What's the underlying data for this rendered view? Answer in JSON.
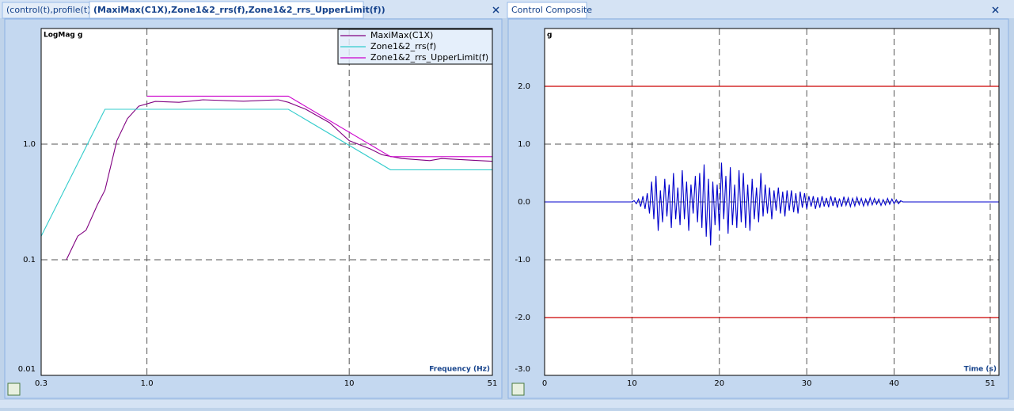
{
  "tabs_left": [
    {
      "label": "(control(t),profile(t))"
    },
    {
      "label": "(MaxiMax(C1X),Zone1&2_rrs(f),Zone1&2_rrs_UpperLimit(f))",
      "active": true
    }
  ],
  "tabs_right": [
    {
      "label": "Control Composite",
      "active": false
    }
  ],
  "chart_data": [
    {
      "type": "line",
      "y_label": "LogMag g",
      "x_label": "Frequency (Hz)",
      "xscale": "log",
      "yscale": "log",
      "xlim": [
        0.3,
        51
      ],
      "ylim": [
        0.01,
        10
      ],
      "xticks": [
        0.3,
        {
          "value": 1,
          "label": "1.0"
        },
        10,
        51
      ],
      "yticks": [
        0.01,
        0.1,
        {
          "value": 1,
          "label": "1.0"
        }
      ],
      "grid": true,
      "legend": "upper right",
      "series": [
        {
          "name": "MaxiMax(C1X)",
          "color": "#800080",
          "x": [
            0.4,
            0.455,
            0.5,
            0.57,
            0.62,
            0.71,
            0.8,
            0.91,
            1.1,
            1.44,
            1.89,
            3.0,
            4.46,
            5.0,
            6.1,
            8.0,
            10,
            12.7,
            14.5,
            18.2,
            25,
            28.6,
            51
          ],
          "values": [
            0.1,
            0.16,
            0.18,
            0.3,
            0.4,
            1.07,
            1.66,
            2.13,
            2.34,
            2.3,
            2.42,
            2.35,
            2.42,
            2.3,
            2.0,
            1.53,
            1.07,
            0.91,
            0.81,
            0.75,
            0.72,
            0.75,
            0.71
          ]
        },
        {
          "name": "Zone1&2_rrs(f)",
          "color": "#33cccc",
          "x": [
            0.3,
            0.62,
            5,
            16,
            51
          ],
          "values": [
            0.16,
            2,
            2,
            0.6,
            0.6
          ]
        },
        {
          "name": "Zone1&2_rrs_UpperLimit(f)",
          "color": "#cc00cc",
          "x": [
            1,
            5,
            16,
            51
          ],
          "values": [
            2.6,
            2.6,
            0.78,
            0.78
          ]
        }
      ]
    },
    {
      "type": "line",
      "y_label": "g",
      "x_label": "Time (s)",
      "xscale": "linear",
      "yscale": "linear",
      "xlim": [
        0,
        52
      ],
      "ylim": [
        -3,
        3
      ],
      "xticks": [
        0,
        10,
        20,
        30,
        40,
        51
      ],
      "yticks": [
        {
          "value": -3,
          "label": "-3.0"
        },
        {
          "value": -2,
          "label": "-2.0"
        },
        {
          "value": -1,
          "label": "-1.0"
        },
        {
          "value": 0,
          "label": "0.0"
        },
        {
          "value": 1,
          "label": "1.0"
        },
        {
          "value": 2,
          "label": "2.0"
        }
      ],
      "grid": true,
      "reference_lines": [
        2,
        -2
      ],
      "reference_color": "#cc0000",
      "x": [
        0,
        10,
        10.25,
        10.5,
        10.75,
        11,
        11.25,
        11.5,
        11.75,
        12,
        12.25,
        12.5,
        12.75,
        13,
        13.25,
        13.5,
        13.75,
        14,
        14.25,
        14.5,
        14.75,
        15,
        15.25,
        15.5,
        15.75,
        16,
        16.25,
        16.5,
        16.75,
        17,
        17.25,
        17.5,
        17.75,
        18,
        18.25,
        18.5,
        18.75,
        19,
        19.25,
        19.5,
        19.75,
        20,
        20.25,
        20.5,
        20.75,
        21,
        21.25,
        21.5,
        21.75,
        22,
        22.25,
        22.5,
        22.75,
        23,
        23.25,
        23.5,
        23.75,
        24,
        24.25,
        24.5,
        24.75,
        25,
        25.25,
        25.5,
        25.75,
        26,
        26.25,
        26.5,
        26.75,
        27,
        27.25,
        27.5,
        27.75,
        28,
        28.25,
        28.5,
        28.75,
        29,
        29.25,
        29.5,
        29.75,
        30,
        30.25,
        30.5,
        30.75,
        31,
        31.25,
        31.5,
        31.75,
        32,
        32.25,
        32.5,
        32.75,
        33,
        33.25,
        33.5,
        33.75,
        34,
        34.25,
        34.5,
        34.75,
        35,
        35.25,
        35.5,
        35.75,
        36,
        36.25,
        36.5,
        36.75,
        37,
        37.25,
        37.5,
        37.75,
        38,
        38.25,
        38.5,
        38.75,
        39,
        39.25,
        39.5,
        39.75,
        40,
        40.25,
        40.5,
        40.75,
        41,
        52
      ],
      "series": [
        {
          "color": "#0000cc",
          "values": [
            0,
            0,
            0.02,
            -0.03,
            0.05,
            -0.08,
            0.1,
            -0.12,
            0.15,
            -0.2,
            0.35,
            -0.3,
            0.45,
            -0.5,
            0.2,
            -0.35,
            0.4,
            -0.25,
            0.3,
            -0.45,
            0.5,
            -0.3,
            0.25,
            -0.4,
            0.55,
            -0.3,
            0.35,
            -0.5,
            0.3,
            -0.2,
            0.45,
            -0.35,
            0.5,
            -0.45,
            0.65,
            -0.6,
            0.4,
            -0.75,
            0.35,
            -0.4,
            0.3,
            -0.5,
            0.68,
            -0.3,
            0.45,
            -0.55,
            0.6,
            -0.4,
            0.3,
            -0.45,
            0.55,
            -0.35,
            0.5,
            -0.45,
            0.3,
            -0.5,
            0.4,
            -0.3,
            0.25,
            -0.35,
            0.5,
            -0.25,
            0.3,
            -0.2,
            0.25,
            -0.3,
            0.2,
            -0.15,
            0.25,
            -0.2,
            0.18,
            -0.25,
            0.2,
            -0.15,
            0.2,
            -0.18,
            0.15,
            -0.2,
            0.18,
            -0.1,
            0.15,
            -0.12,
            0.1,
            -0.08,
            0.1,
            -0.12,
            0.08,
            -0.1,
            0.1,
            -0.08,
            0.07,
            -0.09,
            0.1,
            -0.07,
            0.08,
            -0.1,
            0.06,
            -0.08,
            0.09,
            -0.06,
            0.07,
            -0.08,
            0.06,
            -0.07,
            0.08,
            -0.05,
            0.06,
            -0.07,
            0.05,
            -0.06,
            0.07,
            -0.05,
            0.06,
            -0.04,
            0.05,
            -0.06,
            0.04,
            -0.05,
            0.06,
            -0.04,
            0.05,
            -0.03,
            0.04,
            -0.03,
            0.02,
            0,
            0
          ]
        }
      ]
    }
  ]
}
